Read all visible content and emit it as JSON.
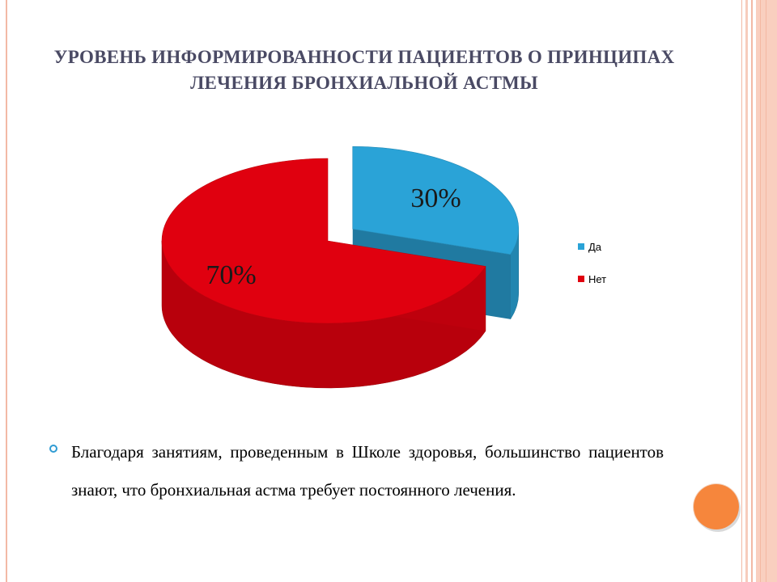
{
  "slide": {
    "title": "УРОВЕНЬ ИНФОРМИРОВАННОСТИ ПАЦИЕНТОВ О ПРИНЦИПАХ ЛЕЧЕНИЯ БРОНХИАЛЬНОЙ АСТМЫ",
    "body_text": "Благодаря занятиям, проведенным в Школе здоровья, большинство пациентов знают, что бронхиальная астма требует постоянного лечения."
  },
  "icons": {
    "bullet": "circle-bullet-icon",
    "decoration": "orange-circle-icon"
  },
  "colors": {
    "title": "#4a4a64",
    "bullet": "#2f9bd3",
    "accent_orange": "#f6863c",
    "frame": "#f2b9a5"
  },
  "chart_data": {
    "type": "pie",
    "title": "",
    "three_d": true,
    "categories": [
      "Да",
      "Нет"
    ],
    "values": [
      30,
      70
    ],
    "data_labels": [
      "30%",
      "70%"
    ],
    "colors": [
      "#2aa3d7",
      "#e0000f"
    ],
    "exploded": [
      "Да"
    ],
    "legend": {
      "position": "right",
      "entries": [
        "Да",
        "Нет"
      ]
    }
  }
}
